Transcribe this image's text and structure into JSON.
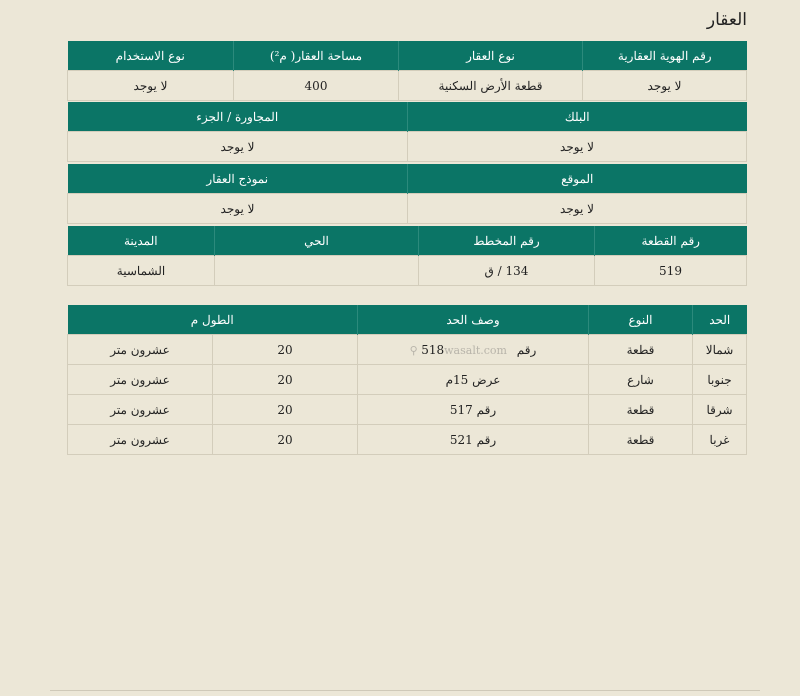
{
  "title": "العقار",
  "property": {
    "band1": {
      "headers": [
        "رقم الهوية العقارية",
        "نوع العقار",
        "مساحة العقار( م²)",
        "نوع الاستخدام"
      ],
      "values": [
        "لا يوجد",
        "قطعة الأرض السكنية",
        "400",
        "لا يوجد"
      ]
    },
    "band2": {
      "headers": [
        "البلك",
        "المجاورة / الجزء"
      ],
      "values": [
        "لا يوجد",
        "لا يوجد"
      ]
    },
    "band3": {
      "headers": [
        "الموقع",
        "نموذج العقار"
      ],
      "values": [
        "لا يوجد",
        "لا يوجد"
      ]
    },
    "band4": {
      "headers": [
        "رقم القطعة",
        "رقم المخطط",
        "الحي",
        "المدينة"
      ],
      "values": [
        "519",
        "134 / ق",
        "",
        "الشماسية"
      ]
    }
  },
  "boundaries": {
    "headers": [
      "الحد",
      "النوع",
      "وصف الحد",
      "الطول م"
    ],
    "watermark": "wasalt.com ⚲",
    "rows": [
      {
        "side": "شمالا",
        "type": "قطعة",
        "desc": "رقم 518",
        "length": "20",
        "length_text": "عشرون متر"
      },
      {
        "side": "جنوبا",
        "type": "شارع",
        "desc": "عرض 15م",
        "length": "20",
        "length_text": "عشرون متر"
      },
      {
        "side": "شرقا",
        "type": "قطعة",
        "desc": "رقم 517",
        "length": "20",
        "length_text": "عشرون متر"
      },
      {
        "side": "غربا",
        "type": "قطعة",
        "desc": "رقم 521",
        "length": "20",
        "length_text": "عشرون متر"
      }
    ]
  },
  "colors": {
    "header_green": "#0b7566",
    "background": "#ece7d7"
  }
}
